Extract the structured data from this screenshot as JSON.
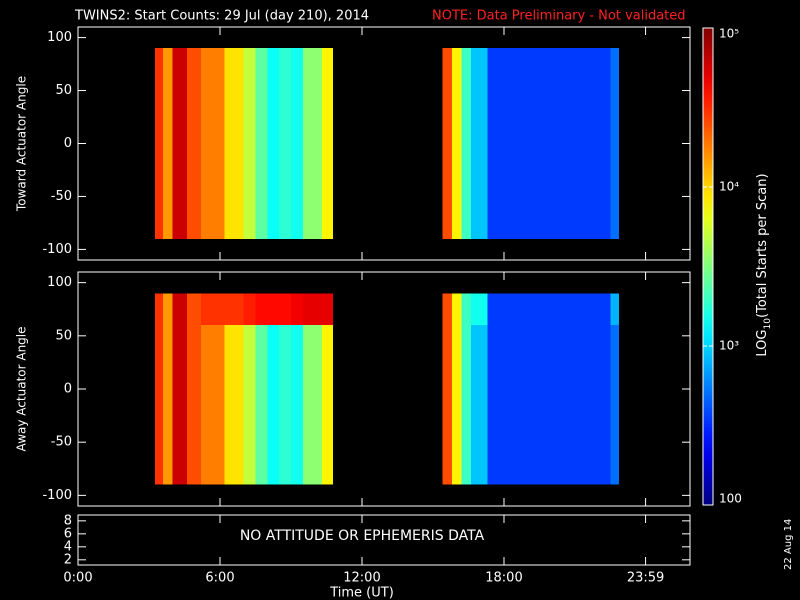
{
  "title": "TWINS2: Start Counts: 29 Jul (day 210), 2014",
  "note": "NOTE: Data Preliminary - Not validated",
  "date_stamp": "22 Aug 14",
  "colorbar": {
    "label": "LOG",
    "label_sub": "10",
    "label_rest": "(Total Starts per Scan)",
    "log": true,
    "clim": [
      100,
      100000
    ],
    "ticks": [
      100,
      {
        "value": 1000,
        "label": "10³"
      },
      {
        "value": 10000,
        "label": "10⁴"
      },
      {
        "value": 100000,
        "label": "10⁵"
      }
    ]
  },
  "chart_data": [
    {
      "type": "heatmap",
      "ylabel": "Toward Actuator Angle",
      "ylim": [
        -110,
        110
      ],
      "yticks": [
        -100,
        -50,
        0,
        50,
        100
      ],
      "y_edges": [
        -90,
        90
      ],
      "blocks": [
        {
          "edges": [
            3.26,
            3.6,
            4.0,
            4.6,
            5.2,
            6.2,
            7.0,
            7.5,
            8.0,
            8.5,
            9.0,
            9.5,
            10.3,
            10.76
          ],
          "values": [
            [
              30000,
              15000,
              60000,
              25000,
              18000,
              9000,
              5000,
              2500,
              1400,
              1800,
              1500,
              3500,
              8000
            ]
          ]
        },
        {
          "edges": [
            15.4,
            15.8,
            16.2,
            16.6,
            17.3,
            22.5,
            22.85
          ],
          "values": [
            [
              25000,
              8000,
              2000,
              900,
              350,
              500
            ]
          ]
        }
      ]
    },
    {
      "type": "heatmap",
      "ylabel": "Away Actuator Angle",
      "ylim": [
        -110,
        110
      ],
      "yticks": [
        -100,
        -50,
        0,
        50,
        100
      ],
      "y_edges": [
        -90,
        60,
        90
      ],
      "blocks": [
        {
          "edges": [
            3.26,
            3.6,
            4.0,
            4.6,
            5.2,
            6.2,
            7.0,
            7.5,
            8.0,
            8.5,
            9.0,
            9.5,
            10.3,
            10.76
          ],
          "values": [
            [
              30000,
              15000,
              60000,
              25000,
              18000,
              9000,
              5000,
              2500,
              1400,
              1800,
              1500,
              3500,
              8000
            ],
            [
              30000,
              15000,
              60000,
              25000,
              30000,
              30000,
              35000,
              40000,
              40000,
              40000,
              45000,
              50000,
              50000
            ]
          ]
        },
        {
          "edges": [
            15.4,
            15.8,
            16.2,
            16.6,
            17.3,
            22.5,
            22.85
          ],
          "values": [
            [
              25000,
              8000,
              2000,
              900,
              350,
              500
            ],
            [
              25000,
              8000,
              2000,
              1500,
              350,
              800
            ]
          ]
        }
      ]
    },
    {
      "type": "text_panel",
      "text": "NO ATTITUDE OR EPHEMERIS DATA",
      "xlabel": "Time (UT)",
      "xlim": [
        0,
        25.86
      ],
      "xticks": [
        {
          "value": 0,
          "label": "0:00"
        },
        {
          "value": 6,
          "label": "6:00"
        },
        {
          "value": 12,
          "label": "12:00"
        },
        {
          "value": 18,
          "label": "18:00"
        },
        {
          "value": 23.983,
          "label": "23:59"
        }
      ],
      "ylim": [
        1.2,
        8.9
      ],
      "yticks": [
        2,
        4,
        6,
        8
      ]
    }
  ]
}
